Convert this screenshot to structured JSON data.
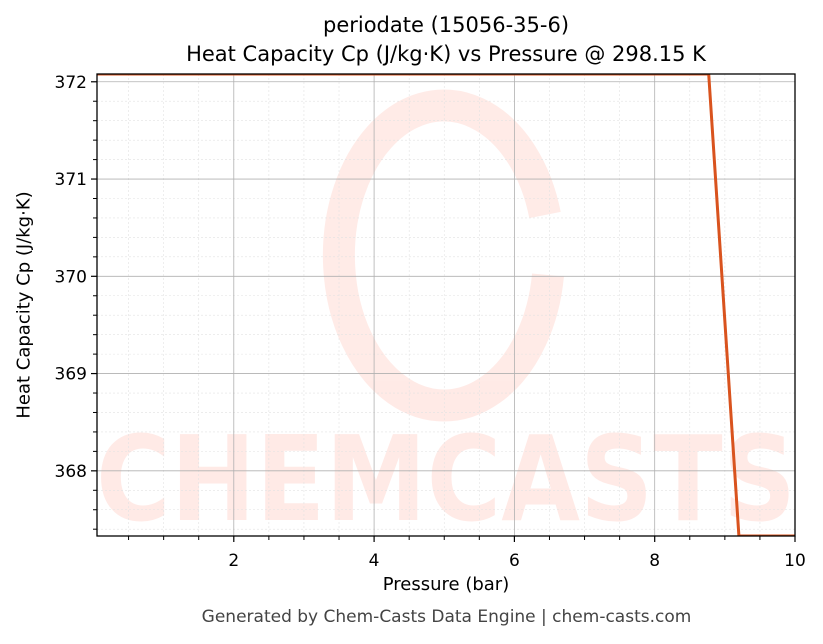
{
  "chart_data": {
    "type": "line",
    "title": "periodate (15056-35-6)",
    "subtitle": "Heat Capacity Cp (J/kg·K) vs Pressure @ 298.15 K",
    "xlabel": "Pressure (bar)",
    "ylabel": "Heat Capacity Cp (J/kg·K)",
    "xlim": [
      0.05,
      10
    ],
    "ylim": [
      367.33,
      372.08
    ],
    "xticks": [
      2,
      4,
      6,
      8,
      10
    ],
    "yticks": [
      368,
      369,
      370,
      371,
      372
    ],
    "grid": true,
    "series": [
      {
        "x": [
          0.05,
          8.77,
          9.2,
          10
        ],
        "y": [
          372.08,
          372.08,
          367.33,
          367.33
        ],
        "color": "#d9531e"
      }
    ],
    "watermark": "CHEMCASTS"
  },
  "footer": "Generated by Chem-Casts Data Engine | chem-casts.com"
}
